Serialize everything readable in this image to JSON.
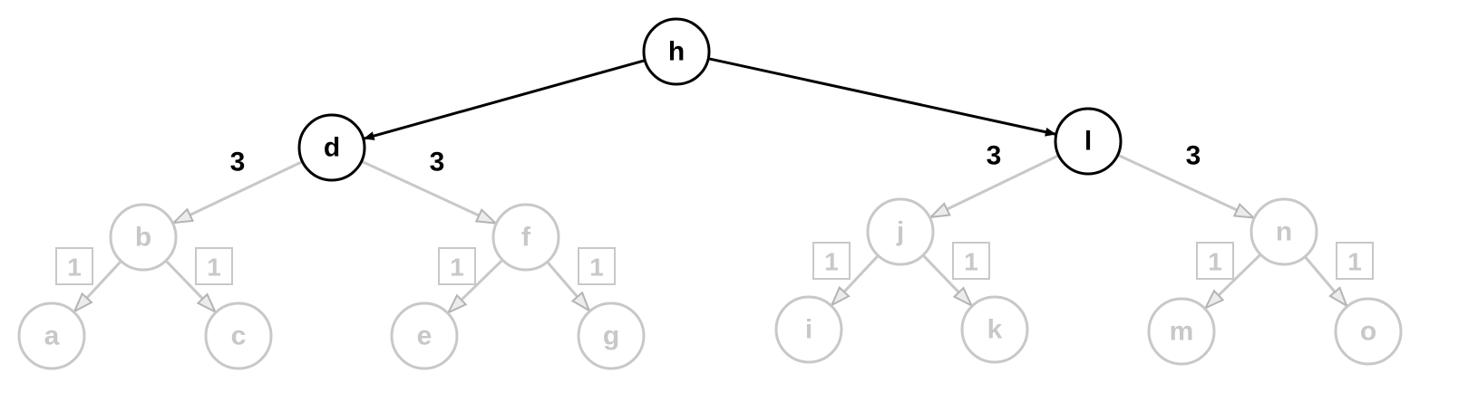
{
  "diagram": {
    "colors": {
      "active": "#000000",
      "faded": "#c8c8c8",
      "background": "#ffffff"
    },
    "nodes": [
      {
        "id": "h",
        "label": "h",
        "state": "active"
      },
      {
        "id": "d",
        "label": "d",
        "state": "active"
      },
      {
        "id": "l",
        "label": "l",
        "state": "active"
      },
      {
        "id": "b",
        "label": "b",
        "state": "faded"
      },
      {
        "id": "f",
        "label": "f",
        "state": "faded"
      },
      {
        "id": "j",
        "label": "j",
        "state": "faded"
      },
      {
        "id": "n",
        "label": "n",
        "state": "faded"
      },
      {
        "id": "a",
        "label": "a",
        "state": "faded"
      },
      {
        "id": "c",
        "label": "c",
        "state": "faded"
      },
      {
        "id": "e",
        "label": "e",
        "state": "faded"
      },
      {
        "id": "g",
        "label": "g",
        "state": "faded"
      },
      {
        "id": "i",
        "label": "i",
        "state": "faded"
      },
      {
        "id": "k",
        "label": "k",
        "state": "faded"
      },
      {
        "id": "m",
        "label": "m",
        "state": "faded"
      },
      {
        "id": "o",
        "label": "o",
        "state": "faded"
      }
    ],
    "edges": [
      {
        "from": "h",
        "to": "d",
        "state": "active",
        "weight": "",
        "weight_style": ""
      },
      {
        "from": "h",
        "to": "l",
        "state": "active",
        "weight": "",
        "weight_style": ""
      },
      {
        "from": "d",
        "to": "b",
        "state": "faded",
        "weight": "3",
        "weight_style": "plain"
      },
      {
        "from": "d",
        "to": "f",
        "state": "faded",
        "weight": "3",
        "weight_style": "plain"
      },
      {
        "from": "l",
        "to": "j",
        "state": "faded",
        "weight": "3",
        "weight_style": "plain"
      },
      {
        "from": "l",
        "to": "n",
        "state": "faded",
        "weight": "3",
        "weight_style": "plain"
      },
      {
        "from": "b",
        "to": "a",
        "state": "faded",
        "weight": "1",
        "weight_style": "boxed"
      },
      {
        "from": "b",
        "to": "c",
        "state": "faded",
        "weight": "1",
        "weight_style": "boxed"
      },
      {
        "from": "f",
        "to": "e",
        "state": "faded",
        "weight": "1",
        "weight_style": "boxed"
      },
      {
        "from": "f",
        "to": "g",
        "state": "faded",
        "weight": "1",
        "weight_style": "boxed"
      },
      {
        "from": "j",
        "to": "i",
        "state": "faded",
        "weight": "1",
        "weight_style": "boxed"
      },
      {
        "from": "j",
        "to": "k",
        "state": "faded",
        "weight": "1",
        "weight_style": "boxed"
      },
      {
        "from": "n",
        "to": "m",
        "state": "faded",
        "weight": "1",
        "weight_style": "boxed"
      },
      {
        "from": "n",
        "to": "o",
        "state": "faded",
        "weight": "1",
        "weight_style": "boxed"
      }
    ]
  }
}
